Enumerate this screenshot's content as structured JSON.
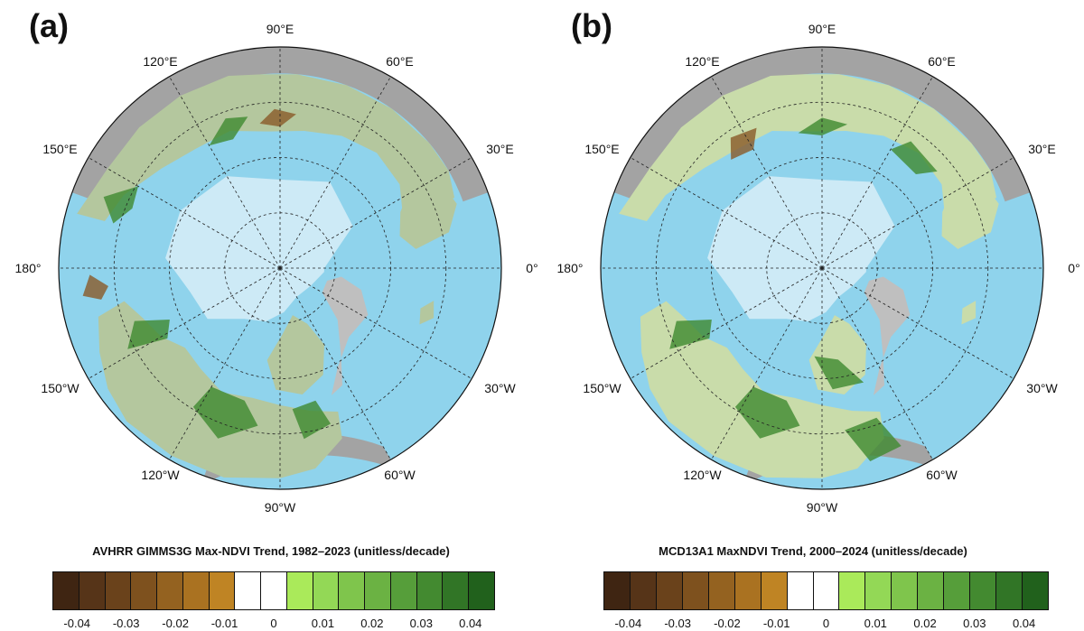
{
  "panels": [
    {
      "letter": "(a)",
      "colorbar_title": "AVHRR GIMMS3G Max-NDVI Trend, 1982–2023 (unitless/decade)"
    },
    {
      "letter": "(b)",
      "colorbar_title": "MCD13A1 MaxNDVI Trend, 2000–2024 (unitless/decade)"
    }
  ],
  "longitude_labels": [
    "90°E",
    "60°E",
    "30°E",
    "0°",
    "30°W",
    "60°W",
    "90°W",
    "120°W",
    "150°W",
    "180°",
    "150°E",
    "120°E"
  ],
  "colorbar": {
    "min": -0.045,
    "max": 0.045,
    "step": 0.005,
    "tick_values": [
      -0.04,
      -0.03,
      -0.02,
      -0.01,
      0,
      0.01,
      0.02,
      0.03,
      0.04
    ],
    "tick_labels": [
      "-0.04",
      "-0.03",
      "-0.02",
      "-0.01",
      "0",
      "0.01",
      "0.02",
      "0.03",
      "0.04"
    ],
    "colors": [
      "#3f2512",
      "#563418",
      "#6a421b",
      "#7e511e",
      "#946220",
      "#aa7221",
      "#bf8424",
      "#ffffff",
      "#ffffff",
      "#aaea5a",
      "#93d856",
      "#7fc54c",
      "#6bb243",
      "#569e3a",
      "#438a30",
      "#317526",
      "#21611c"
    ]
  },
  "map_colors": {
    "ocean": "#8fd3ec",
    "sea_ice": "#cdeaf6",
    "greenland": "#bfbfbf",
    "outside": "#a3a3a3",
    "land_a": "#b4c79e",
    "land_b": "#c9dcaa",
    "greening": "#3f8a2f",
    "browning": "#8a5a28"
  }
}
